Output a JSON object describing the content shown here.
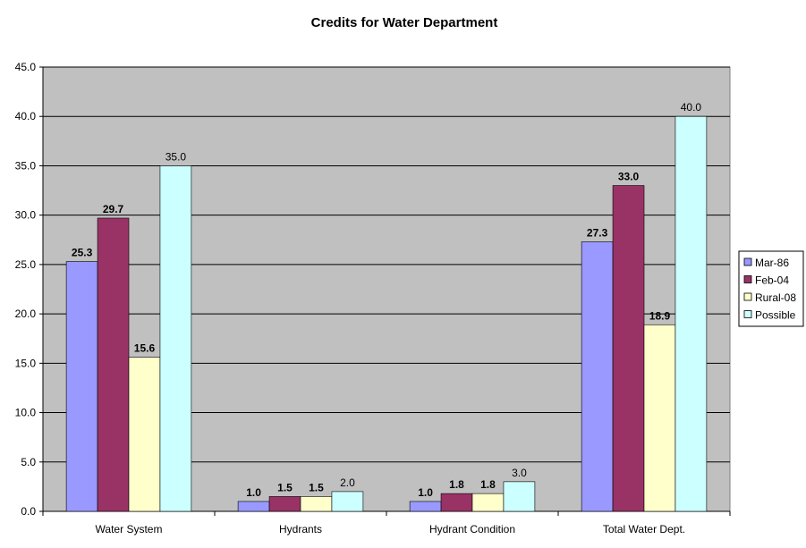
{
  "chart_data": {
    "type": "bar",
    "title": "Credits for Water Department",
    "xlabel": "",
    "ylabel": "",
    "ylim": [
      0,
      45
    ],
    "yticks": [
      "0.0",
      "5.0",
      "10.0",
      "15.0",
      "20.0",
      "25.0",
      "30.0",
      "35.0",
      "40.0",
      "45.0"
    ],
    "categories": [
      "Water System",
      "Hydrants",
      "Hydrant Condition",
      "Total Water Dept."
    ],
    "grid": true,
    "legend_position": "right",
    "plot_background": "#c0c0c0",
    "series": [
      {
        "name": "Mar-86",
        "color": "#9999ff",
        "values": [
          25.3,
          1.0,
          1.0,
          27.3
        ],
        "labels": [
          "25.3",
          "1.0",
          "1.0",
          "27.3"
        ],
        "label_bold": true
      },
      {
        "name": "Feb-04",
        "color": "#993366",
        "values": [
          29.7,
          1.5,
          1.8,
          33.0
        ],
        "labels": [
          "29.7",
          "1.5",
          "1.8",
          "33.0"
        ],
        "label_bold": true
      },
      {
        "name": "Rural-08",
        "color": "#ffffcc",
        "values": [
          15.6,
          1.5,
          1.8,
          18.9
        ],
        "labels": [
          "15.6",
          "1.5",
          "1.8",
          "18.9"
        ],
        "label_bold": true
      },
      {
        "name": "Possible",
        "color": "#ccffff",
        "values": [
          35.0,
          2.0,
          3.0,
          40.0
        ],
        "labels": [
          "35.0",
          "2.0",
          "3.0",
          "40.0"
        ],
        "label_bold": false
      }
    ]
  }
}
